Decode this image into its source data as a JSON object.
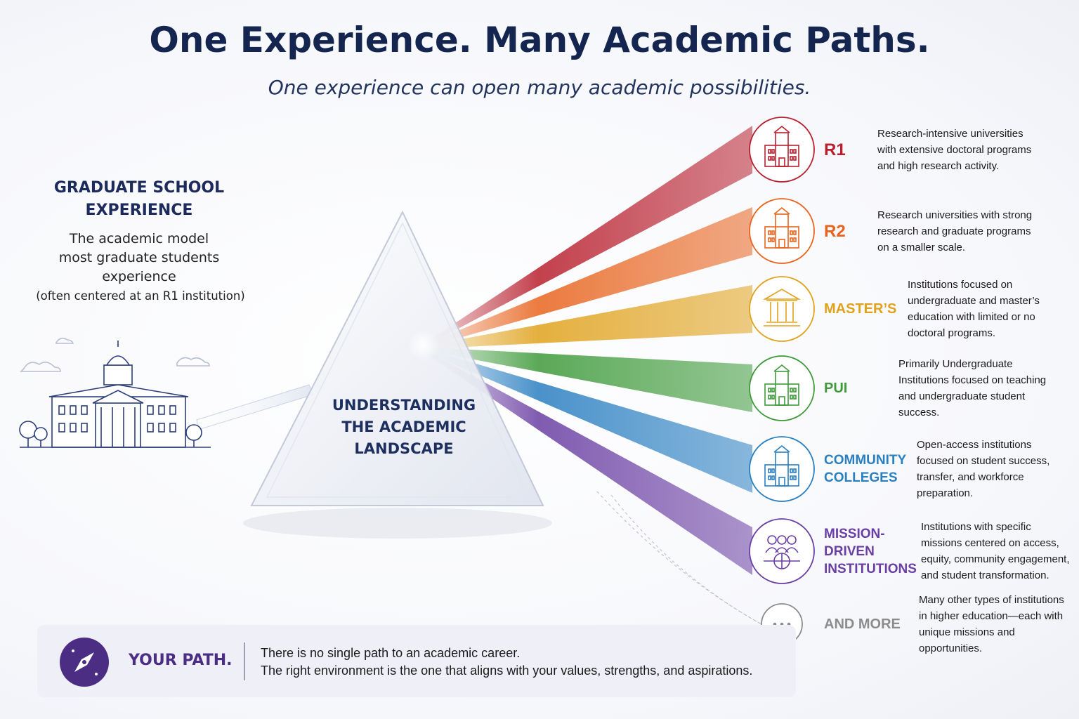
{
  "header": {
    "title": "One Experience. Many Academic Paths.",
    "subtitle": "One experience can open many academic possibilities."
  },
  "source": {
    "heading": "GRADUATE SCHOOL EXPERIENCE",
    "text": "The academic model most graduate students experience",
    "note": "(often centered at an R1 institution)"
  },
  "prism": {
    "label": "UNDERSTANDING THE ACADEMIC LANDSCAPE"
  },
  "paths": [
    {
      "label": "R1",
      "description": "Research-intensive universities with extensive doctoral programs and high research activity.",
      "color": "#b8202e"
    },
    {
      "label": "R2",
      "description": "Research universities with strong research and graduate programs on a smaller scale.",
      "color": "#e8641e"
    },
    {
      "label": "MASTER’S",
      "description": "Institutions focused on undergraduate and master’s education with limited or no doctoral programs.",
      "color": "#e0a21c"
    },
    {
      "label": "PUI",
      "description": "Primarily Undergraduate Institutions focused on teaching and undergraduate student success.",
      "color": "#3e9a3a"
    },
    {
      "label": "COMMUNITY COLLEGES",
      "description": "Open-access institutions focused on student success, transfer, and workforce preparation.",
      "color": "#2a7fc1"
    },
    {
      "label": "MISSION-DRIVEN INSTITUTIONS",
      "description": "Institutions with specific missions centered on access, equity, community engagement, and student transformation.",
      "color": "#6a3fa3"
    },
    {
      "label": "AND MORE",
      "description": "Many other types of institutions in higher education—each with unique missions and opportunities.",
      "color": "#8c8c8c"
    }
  ],
  "footer": {
    "heading": "YOUR PATH.",
    "line1": "There is no single path to an academic career.",
    "line2": "The right environment is the one that aligns with your values, strengths, and aspirations."
  }
}
